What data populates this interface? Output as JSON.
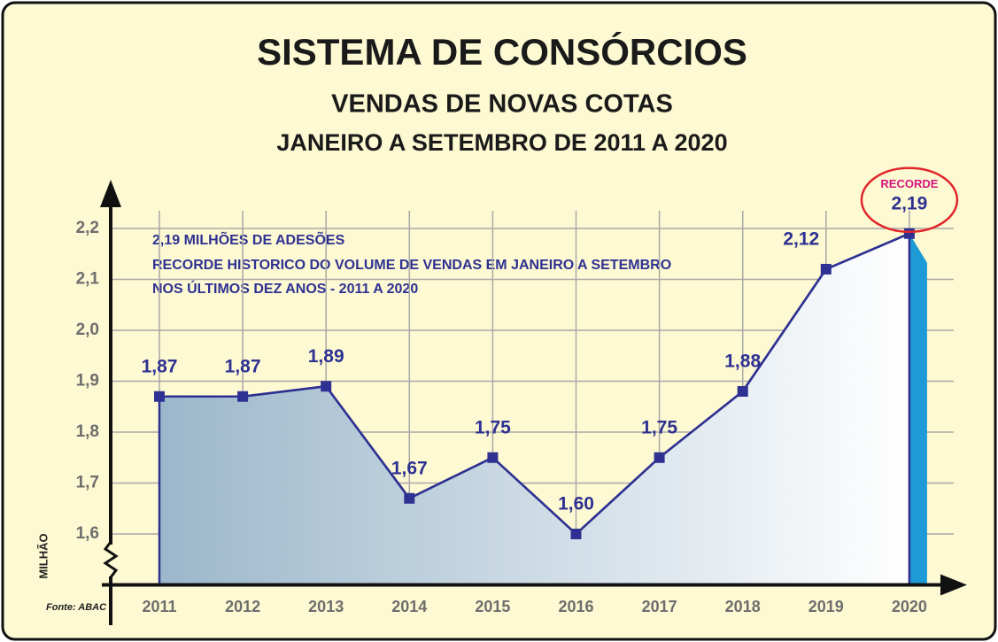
{
  "chart_data": {
    "type": "area",
    "title": "SISTEMA DE CONSÓRCIOS",
    "subtitle": [
      "VENDAS DE NOVAS COTAS",
      "JANEIRO A SETEMBRO DE 2011 A 2020"
    ],
    "annotations": [
      "2,19 MILHÕES DE ADESÕES",
      "RECORDE HISTORICO DO VOLUME DE VENDAS EM JANEIRO A SETEMBRO",
      "NOS ÚLTIMOS DEZ ANOS - 2011 A 2020"
    ],
    "highlight_label": "RECORDE",
    "y_label": "MILHÃO",
    "source": "Fonte: ABAC",
    "categories": [
      "2011",
      "2012",
      "2013",
      "2014",
      "2015",
      "2016",
      "2017",
      "2018",
      "2019",
      "2020"
    ],
    "values": [
      1.87,
      1.87,
      1.89,
      1.67,
      1.75,
      1.6,
      1.75,
      1.88,
      2.12,
      2.19
    ],
    "value_labels": [
      "1,87",
      "1,87",
      "1,89",
      "1,67",
      "1,75",
      "1,60",
      "1,75",
      "1,88",
      "2,12",
      "2,19"
    ],
    "color": "#2e3192",
    "ylim": [
      1.5,
      2.2
    ],
    "yticks": [
      {
        "value": 1.6,
        "label": "1,6"
      },
      {
        "value": 1.7,
        "label": "1,7"
      },
      {
        "value": 1.8,
        "label": "1,8"
      },
      {
        "value": 1.9,
        "label": "1,9"
      },
      {
        "value": 2.0,
        "label": "2,0"
      },
      {
        "value": 2.1,
        "label": "2,1"
      },
      {
        "value": 2.2,
        "label": "2,2"
      }
    ],
    "grid": true
  }
}
